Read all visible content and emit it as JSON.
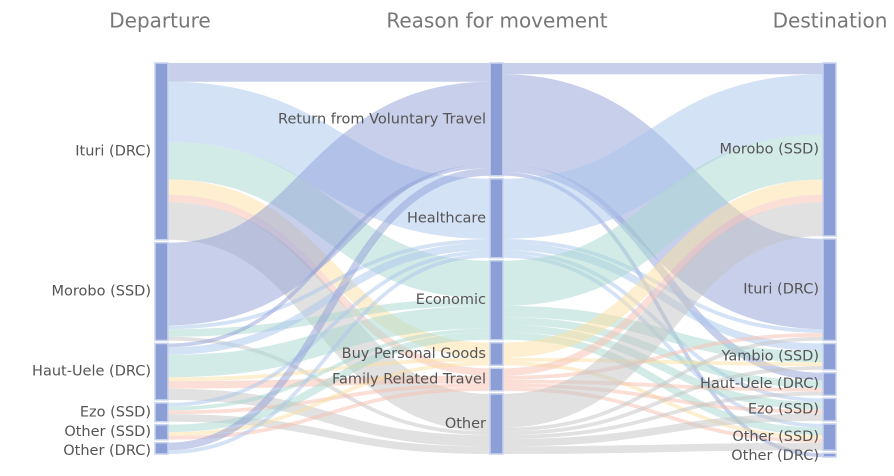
{
  "chart_data": {
    "type": "sankey",
    "node_color": "#8b9fd6",
    "columns": [
      {
        "title": "Departure",
        "nodes": [
          {
            "name": "Ituri (DRC)"
          },
          {
            "name": "Morobo (SSD)"
          },
          {
            "name": "Haut-Uele (DRC)"
          },
          {
            "name": "Ezo (SSD)"
          },
          {
            "name": "Other (SSD)"
          },
          {
            "name": "Other (DRC)"
          }
        ]
      },
      {
        "title": "Reason for movement",
        "nodes": [
          {
            "name": "Return from Voluntary Travel",
            "color": "#8f9fd8"
          },
          {
            "name": "Healthcare",
            "color": "#a9c6ee"
          },
          {
            "name": "Economic",
            "color": "#a8d8cf"
          },
          {
            "name": "Buy Personal Goods",
            "color": "#fbe0a0"
          },
          {
            "name": "Family Related Travel",
            "color": "#f8bfb0"
          },
          {
            "name": "Other",
            "color": "#c4c4c4"
          }
        ]
      },
      {
        "title": "Destination",
        "nodes": [
          {
            "name": "Morobo (SSD)"
          },
          {
            "name": "Ituri (DRC)"
          },
          {
            "name": "Yambio (SSD)"
          },
          {
            "name": "Haut-Uele (DRC)"
          },
          {
            "name": "Ezo (SSD)"
          },
          {
            "name": "Other (SSD)"
          },
          {
            "name": "Other (DRC)"
          }
        ]
      }
    ],
    "flows": [
      [
        {
          "source": "Ituri (DRC)",
          "target": "Return from Voluntary Travel",
          "value": 5
        },
        {
          "source": "Ituri (DRC)",
          "target": "Healthcare",
          "value": 16
        },
        {
          "source": "Ituri (DRC)",
          "target": "Economic",
          "value": 10
        },
        {
          "source": "Ituri (DRC)",
          "target": "Buy Personal Goods",
          "value": 4
        },
        {
          "source": "Ituri (DRC)",
          "target": "Family Related Travel",
          "value": 2
        },
        {
          "source": "Ituri (DRC)",
          "target": "Other",
          "value": 10
        },
        {
          "source": "Morobo (SSD)",
          "target": "Return from Voluntary Travel",
          "value": 22
        },
        {
          "source": "Morobo (SSD)",
          "target": "Healthcare",
          "value": 1
        },
        {
          "source": "Morobo (SSD)",
          "target": "Economic",
          "value": 2
        },
        {
          "source": "Morobo (SSD)",
          "target": "Other",
          "value": 1
        },
        {
          "source": "Haut-Uele (DRC)",
          "target": "Return from Voluntary Travel",
          "value": 1
        },
        {
          "source": "Haut-Uele (DRC)",
          "target": "Healthcare",
          "value": 2
        },
        {
          "source": "Haut-Uele (DRC)",
          "target": "Economic",
          "value": 6
        },
        {
          "source": "Haut-Uele (DRC)",
          "target": "Buy Personal Goods",
          "value": 1
        },
        {
          "source": "Haut-Uele (DRC)",
          "target": "Family Related Travel",
          "value": 2
        },
        {
          "source": "Haut-Uele (DRC)",
          "target": "Other",
          "value": 3
        },
        {
          "source": "Ezo (SSD)",
          "target": "Healthcare",
          "value": 1
        },
        {
          "source": "Ezo (SSD)",
          "target": "Economic",
          "value": 1
        },
        {
          "source": "Ezo (SSD)",
          "target": "Family Related Travel",
          "value": 1
        },
        {
          "source": "Ezo (SSD)",
          "target": "Other",
          "value": 2
        },
        {
          "source": "Other (SSD)",
          "target": "Economic",
          "value": 2
        },
        {
          "source": "Other (SSD)",
          "target": "Buy Personal Goods",
          "value": 1
        },
        {
          "source": "Other (SSD)",
          "target": "Family Related Travel",
          "value": 1
        },
        {
          "source": "Other (DRC)",
          "target": "Return from Voluntary Travel",
          "value": 2
        },
        {
          "source": "Other (DRC)",
          "target": "Healthcare",
          "value": 1
        }
      ],
      [
        {
          "source": "Return from Voluntary Travel",
          "target": "Morobo (SSD)",
          "value": 3
        },
        {
          "source": "Return from Voluntary Travel",
          "target": "Ituri (DRC)",
          "value": 24
        },
        {
          "source": "Return from Voluntary Travel",
          "target": "Haut-Uele (DRC)",
          "value": 2
        },
        {
          "source": "Return from Voluntary Travel",
          "target": "Other (DRC)",
          "value": 1
        },
        {
          "source": "Healthcare",
          "target": "Morobo (SSD)",
          "value": 16
        },
        {
          "source": "Healthcare",
          "target": "Ituri (DRC)",
          "value": 1
        },
        {
          "source": "Healthcare",
          "target": "Yambio (SSD)",
          "value": 2
        },
        {
          "source": "Healthcare",
          "target": "Ezo (SSD)",
          "value": 1
        },
        {
          "source": "Healthcare",
          "target": "Other (SSD)",
          "value": 1
        },
        {
          "source": "Economic",
          "target": "Morobo (SSD)",
          "value": 12
        },
        {
          "source": "Economic",
          "target": "Yambio (SSD)",
          "value": 3
        },
        {
          "source": "Economic",
          "target": "Haut-Uele (DRC)",
          "value": 2
        },
        {
          "source": "Economic",
          "target": "Ezo (SSD)",
          "value": 2
        },
        {
          "source": "Economic",
          "target": "Other (SSD)",
          "value": 2
        },
        {
          "source": "Buy Personal Goods",
          "target": "Morobo (SSD)",
          "value": 4
        },
        {
          "source": "Buy Personal Goods",
          "target": "Yambio (SSD)",
          "value": 1
        },
        {
          "source": "Buy Personal Goods",
          "target": "Other (SSD)",
          "value": 1
        },
        {
          "source": "Family Related Travel",
          "target": "Morobo (SSD)",
          "value": 2
        },
        {
          "source": "Family Related Travel",
          "target": "Ituri (DRC)",
          "value": 1
        },
        {
          "source": "Family Related Travel",
          "target": "Haut-Uele (DRC)",
          "value": 1
        },
        {
          "source": "Family Related Travel",
          "target": "Ezo (SSD)",
          "value": 1
        },
        {
          "source": "Family Related Travel",
          "target": "Other (SSD)",
          "value": 1
        },
        {
          "source": "Other",
          "target": "Morobo (SSD)",
          "value": 9
        },
        {
          "source": "Other",
          "target": "Ituri (DRC)",
          "value": 1
        },
        {
          "source": "Other",
          "target": "Yambio (SSD)",
          "value": 1
        },
        {
          "source": "Other",
          "target": "Haut-Uele (DRC)",
          "value": 1
        },
        {
          "source": "Other",
          "target": "Ezo (SSD)",
          "value": 2
        },
        {
          "source": "Other",
          "target": "Other (SSD)",
          "value": 2
        }
      ]
    ]
  }
}
